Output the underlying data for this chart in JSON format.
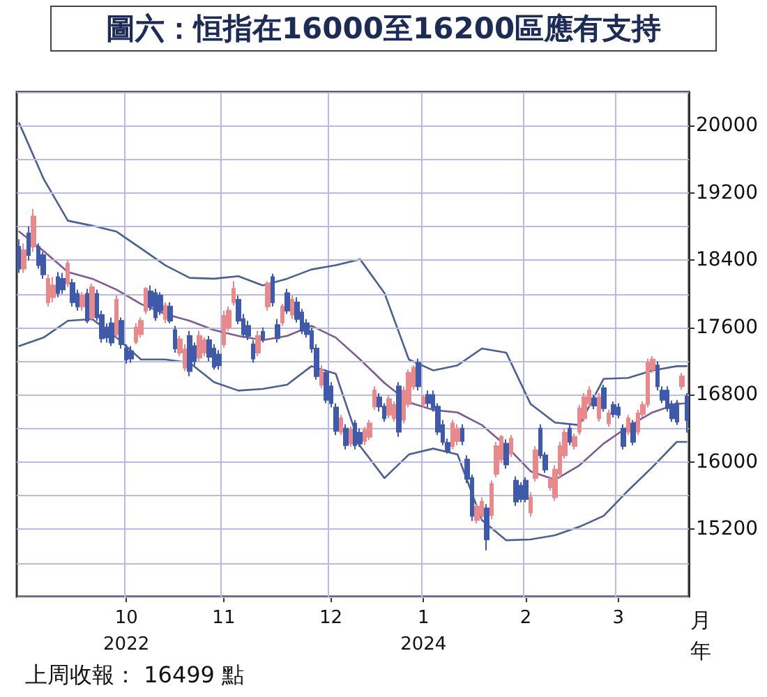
{
  "chart_data": {
    "type": "candlestick",
    "title": "圖六：恒指在16000至16200區應有支持",
    "xlabel": "月年",
    "annotations": [
      "上周收報： 16499 點"
    ],
    "categories": [
      null,
      null,
      null,
      null,
      null,
      null,
      null,
      null,
      null,
      null,
      null,
      null,
      null,
      null,
      null,
      null,
      null,
      null,
      null,
      null,
      null,
      null,
      "10\n2022",
      null,
      null,
      null,
      null,
      null,
      null,
      null,
      null,
      null,
      null,
      null,
      null,
      null,
      null,
      null,
      null,
      null,
      null,
      null,
      "11",
      null,
      null,
      null,
      null,
      null,
      null,
      null,
      null,
      null,
      null,
      null,
      null,
      null,
      null,
      null,
      null,
      null,
      null,
      null,
      null,
      null,
      "12",
      null,
      null,
      null,
      null,
      null,
      null,
      null,
      null,
      null,
      null,
      null,
      null,
      null,
      null,
      null,
      null,
      null,
      null,
      "1\n2024",
      null,
      null,
      null,
      null,
      null,
      null,
      null,
      null,
      null,
      null,
      null,
      null,
      null,
      null,
      null,
      null,
      null,
      null,
      null,
      null,
      "2",
      null,
      null,
      null,
      null,
      null,
      null,
      null,
      null,
      null,
      null,
      null,
      null,
      null,
      null,
      null,
      null,
      null,
      null,
      "3",
      null,
      null,
      null,
      null,
      null,
      null,
      null,
      null,
      null,
      null,
      null,
      null,
      null,
      null
    ],
    "ohlc": [
      [
        18560,
        18650,
        18250,
        18300
      ],
      [
        18300,
        18600,
        18250,
        18520
      ],
      [
        18720,
        18800,
        18400,
        18460
      ],
      [
        18560,
        19010,
        18500,
        18920
      ],
      [
        18560,
        18600,
        18300,
        18340
      ],
      [
        18460,
        18500,
        18180,
        18230
      ],
      [
        17900,
        18230,
        17850,
        18180
      ],
      [
        17960,
        18200,
        17900,
        18100
      ],
      [
        18200,
        18260,
        17960,
        18010
      ],
      [
        18180,
        18250,
        18000,
        18050
      ],
      [
        18120,
        18400,
        18080,
        18360
      ],
      [
        18130,
        18180,
        17850,
        17900
      ],
      [
        18000,
        18050,
        17800,
        17850
      ],
      [
        17850,
        18020,
        17800,
        17980
      ],
      [
        18000,
        18060,
        17650,
        17680
      ],
      [
        17720,
        18120,
        17680,
        18080
      ],
      [
        18000,
        18050,
        17680,
        17720
      ],
      [
        17750,
        17800,
        17420,
        17470
      ],
      [
        17600,
        17650,
        17420,
        17480
      ],
      [
        17650,
        17720,
        17380,
        17420
      ],
      [
        17520,
        17980,
        17480,
        17930
      ],
      [
        17680,
        17720,
        17350,
        17400
      ],
      [
        17350,
        17400,
        17170,
        17220
      ],
      [
        17320,
        17380,
        17180,
        17230
      ],
      [
        17430,
        17650,
        17400,
        17600
      ],
      [
        17520,
        17720,
        17480,
        17680
      ],
      [
        17800,
        18080,
        17760,
        18060
      ],
      [
        18030,
        18100,
        17800,
        17850
      ],
      [
        18010,
        18060,
        17680,
        17720
      ],
      [
        17980,
        18020,
        17750,
        17800
      ],
      [
        17700,
        17900,
        17650,
        17860
      ],
      [
        17850,
        17900,
        17650,
        17680
      ],
      [
        17570,
        17620,
        17300,
        17350
      ],
      [
        17300,
        17500,
        17260,
        17460
      ],
      [
        17120,
        17400,
        17080,
        17340
      ],
      [
        17500,
        17560,
        17020,
        17080
      ],
      [
        17380,
        17420,
        17150,
        17200
      ],
      [
        17240,
        17560,
        17200,
        17500
      ],
      [
        17300,
        17480,
        17260,
        17450
      ],
      [
        17450,
        17500,
        17200,
        17250
      ],
      [
        17350,
        17400,
        17100,
        17130
      ],
      [
        17280,
        17330,
        17100,
        17150
      ],
      [
        17400,
        17800,
        17360,
        17740
      ],
      [
        17600,
        17850,
        17560,
        17800
      ],
      [
        17900,
        18150,
        17860,
        18060
      ],
      [
        17930,
        17980,
        17640,
        17680
      ],
      [
        17700,
        17760,
        17480,
        17520
      ],
      [
        17620,
        17680,
        17450,
        17500
      ],
      [
        17400,
        17450,
        17180,
        17230
      ],
      [
        17300,
        17560,
        17260,
        17500
      ],
      [
        17550,
        17600,
        17420,
        17460
      ],
      [
        17850,
        18150,
        17800,
        18120
      ],
      [
        18200,
        18240,
        17850,
        17900
      ],
      [
        17630,
        17700,
        17420,
        17470
      ],
      [
        17660,
        17880,
        17620,
        17850
      ],
      [
        18010,
        18060,
        17760,
        17800
      ],
      [
        17750,
        17980,
        17700,
        17930
      ],
      [
        17900,
        17960,
        17660,
        17700
      ],
      [
        17780,
        17820,
        17520,
        17560
      ],
      [
        17650,
        17700,
        17480,
        17520
      ],
      [
        17560,
        17600,
        17300,
        17350
      ],
      [
        17350,
        17400,
        16980,
        17020
      ],
      [
        16920,
        17150,
        16880,
        17100
      ],
      [
        17060,
        17100,
        16700,
        16740
      ],
      [
        16900,
        16950,
        16650,
        16700
      ],
      [
        16650,
        16700,
        16320,
        16370
      ],
      [
        16360,
        16560,
        16320,
        16520
      ],
      [
        16400,
        16450,
        16150,
        16200
      ],
      [
        16220,
        16420,
        16180,
        16380
      ],
      [
        16460,
        16500,
        16150,
        16200
      ],
      [
        16350,
        16400,
        16180,
        16220
      ],
      [
        16250,
        16420,
        16200,
        16380
      ],
      [
        16300,
        16500,
        16260,
        16460
      ],
      [
        16660,
        16900,
        16620,
        16850
      ],
      [
        16770,
        16820,
        16600,
        16660
      ],
      [
        16660,
        16700,
        16480,
        16520
      ],
      [
        16560,
        16800,
        16520,
        16750
      ],
      [
        16520,
        16720,
        16480,
        16680
      ],
      [
        16900,
        16950,
        16300,
        16360
      ],
      [
        16500,
        16900,
        16460,
        16850
      ],
      [
        16690,
        17100,
        16650,
        17060
      ],
      [
        16900,
        17150,
        16860,
        17120
      ],
      [
        17180,
        17230,
        16850,
        16900
      ],
      [
        16690,
        16800,
        16650,
        16770
      ],
      [
        16800,
        16850,
        16650,
        16700
      ],
      [
        16800,
        16850,
        16600,
        16640
      ],
      [
        16660,
        16700,
        16320,
        16360
      ],
      [
        16440,
        16500,
        16200,
        16240
      ],
      [
        16230,
        16280,
        16100,
        16130
      ],
      [
        16190,
        16500,
        16150,
        16460
      ],
      [
        16250,
        16450,
        16200,
        16400
      ],
      [
        16400,
        16450,
        16200,
        16250
      ],
      [
        16030,
        16080,
        15750,
        15800
      ],
      [
        15810,
        15850,
        15300,
        15360
      ],
      [
        15310,
        15500,
        15270,
        15470
      ],
      [
        15360,
        15580,
        15320,
        15530
      ],
      [
        15450,
        15500,
        14950,
        15080
      ],
      [
        15370,
        15780,
        15320,
        15740
      ],
      [
        15860,
        16240,
        15820,
        16190
      ],
      [
        16030,
        16320,
        15990,
        16300
      ],
      [
        16220,
        16270,
        15920,
        15970
      ],
      [
        16100,
        16320,
        16060,
        16280
      ],
      [
        15780,
        15830,
        15480,
        15530
      ],
      [
        15720,
        15760,
        15520,
        15560
      ],
      [
        15780,
        15820,
        15520,
        15560
      ],
      [
        15400,
        15640,
        15350,
        15580
      ],
      [
        15810,
        16190,
        15770,
        16140
      ],
      [
        16400,
        16450,
        16040,
        16080
      ],
      [
        16080,
        16120,
        15870,
        15910
      ],
      [
        15700,
        15830,
        15660,
        15790
      ],
      [
        15580,
        15960,
        15540,
        15910
      ],
      [
        15860,
        16240,
        15820,
        16190
      ],
      [
        16080,
        16400,
        16040,
        16350
      ],
      [
        16400,
        16450,
        16200,
        16240
      ],
      [
        16190,
        16340,
        16150,
        16300
      ],
      [
        16360,
        16680,
        16320,
        16640
      ],
      [
        16520,
        16820,
        16480,
        16770
      ],
      [
        16700,
        16900,
        16660,
        16850
      ],
      [
        16760,
        16800,
        16630,
        16670
      ],
      [
        16520,
        16820,
        16480,
        16770
      ],
      [
        16880,
        16920,
        16600,
        16640
      ],
      [
        16460,
        16620,
        16420,
        16580
      ],
      [
        16680,
        16720,
        16530,
        16570
      ],
      [
        16650,
        16700,
        16520,
        16560
      ],
      [
        16400,
        16450,
        16150,
        16190
      ],
      [
        16360,
        16560,
        16320,
        16520
      ],
      [
        16460,
        16500,
        16200,
        16240
      ],
      [
        16360,
        16620,
        16320,
        16580
      ],
      [
        16570,
        16720,
        16530,
        16680
      ],
      [
        16690,
        17230,
        16650,
        17180
      ],
      [
        17100,
        17260,
        17060,
        17220
      ],
      [
        17150,
        17200,
        16850,
        16900
      ],
      [
        16850,
        16900,
        16700,
        16740
      ],
      [
        16850,
        16900,
        16600,
        16640
      ],
      [
        16690,
        16730,
        16480,
        16520
      ],
      [
        16700,
        16740,
        16440,
        16480
      ],
      [
        16900,
        17060,
        16860,
        17020
      ],
      [
        16780,
        16820,
        16350,
        16499
      ]
    ],
    "colors": [
      "#3f5aa8",
      "#e8898b",
      "#3f5aa8",
      "#e8898b",
      "#3f5aa8",
      "#3f5aa8",
      "#e8898b",
      "#e8898b",
      "#3f5aa8",
      "#3f5aa8",
      "#e8898b",
      "#3f5aa8",
      "#3f5aa8",
      "#e8898b",
      "#3f5aa8",
      "#e8898b",
      "#3f5aa8",
      "#3f5aa8",
      "#3f5aa8",
      "#3f5aa8",
      "#e8898b",
      "#3f5aa8",
      "#3f5aa8",
      "#3f5aa8",
      "#e8898b",
      "#e8898b",
      "#e8898b",
      "#3f5aa8",
      "#3f5aa8",
      "#3f5aa8",
      "#e8898b",
      "#3f5aa8",
      "#3f5aa8",
      "#e8898b",
      "#e8898b",
      "#3f5aa8",
      "#3f5aa8",
      "#e8898b",
      "#e8898b",
      "#3f5aa8",
      "#3f5aa8",
      "#3f5aa8",
      "#e8898b",
      "#e8898b",
      "#e8898b",
      "#3f5aa8",
      "#3f5aa8",
      "#3f5aa8",
      "#3f5aa8",
      "#e8898b",
      "#3f5aa8",
      "#e8898b",
      "#3f5aa8",
      "#3f5aa8",
      "#e8898b",
      "#3f5aa8",
      "#e8898b",
      "#3f5aa8",
      "#3f5aa8",
      "#3f5aa8",
      "#3f5aa8",
      "#3f5aa8",
      "#e8898b",
      "#3f5aa8",
      "#3f5aa8",
      "#3f5aa8",
      "#e8898b",
      "#3f5aa8",
      "#e8898b",
      "#3f5aa8",
      "#3f5aa8",
      "#e8898b",
      "#e8898b",
      "#e8898b",
      "#3f5aa8",
      "#3f5aa8",
      "#e8898b",
      "#e8898b",
      "#3f5aa8",
      "#e8898b",
      "#e8898b",
      "#e8898b",
      "#3f5aa8",
      "#e8898b",
      "#3f5aa8",
      "#3f5aa8",
      "#3f5aa8",
      "#3f5aa8",
      "#3f5aa8",
      "#e8898b",
      "#e8898b",
      "#3f5aa8",
      "#3f5aa8",
      "#3f5aa8",
      "#e8898b",
      "#e8898b",
      "#3f5aa8",
      "#e8898b",
      "#e8898b",
      "#e8898b",
      "#3f5aa8",
      "#e8898b",
      "#3f5aa8",
      "#3f5aa8",
      "#3f5aa8",
      "#e8898b",
      "#e8898b",
      "#3f5aa8",
      "#3f5aa8",
      "#e8898b",
      "#e8898b",
      "#e8898b",
      "#e8898b",
      "#3f5aa8",
      "#e8898b",
      "#e8898b",
      "#e8898b",
      "#e8898b",
      "#3f5aa8",
      "#e8898b",
      "#3f5aa8",
      "#e8898b",
      "#3f5aa8",
      "#3f5aa8",
      "#3f5aa8",
      "#e8898b",
      "#3f5aa8",
      "#e8898b",
      "#e8898b",
      "#e8898b",
      "#e8898b",
      "#3f5aa8",
      "#3f5aa8",
      "#3f5aa8",
      "#3f5aa8",
      "#3f5aa8",
      "#e8898b",
      "#3f5aa8"
    ],
    "series": [
      {
        "type": "line",
        "color": "#4a5f94",
        "values": [
          20030,
          null,
          null,
          null,
          null,
          19370,
          null,
          null,
          null,
          null,
          18870,
          null,
          null,
          null,
          null,
          18810,
          null,
          null,
          null,
          null,
          18740,
          null,
          null,
          null,
          null,
          18540,
          null,
          null,
          null,
          null,
          18340,
          null,
          null,
          null,
          null,
          18190,
          null,
          null,
          null,
          null,
          18180,
          null,
          null,
          null,
          null,
          18210,
          null,
          null,
          null,
          null,
          18100,
          null,
          null,
          null,
          null,
          18180,
          null,
          null,
          null,
          null,
          18290,
          null,
          null,
          null,
          null,
          18340,
          null,
          null,
          null,
          null,
          18410,
          null,
          null,
          null,
          null,
          18010,
          null,
          null,
          null,
          null,
          17220,
          null,
          null,
          null,
          null,
          17090,
          null,
          null,
          null,
          null,
          17150,
          null,
          null,
          null,
          null,
          17350,
          null,
          null,
          null,
          null,
          17300,
          null,
          null,
          null,
          null,
          16690,
          null,
          null,
          null,
          null,
          16470,
          null,
          null,
          null,
          null,
          16440,
          null,
          null,
          null,
          null,
          16990,
          null,
          null,
          null,
          null,
          17000,
          null,
          null,
          null,
          null,
          17090,
          null,
          null,
          null,
          null,
          17140,
          null,
          17140
        ]
      },
      {
        "type": "line",
        "color": "#7d5a96",
        "values": [
          18740,
          null,
          null,
          null,
          null,
          18510,
          null,
          null,
          null,
          null,
          18260,
          null,
          null,
          null,
          null,
          18180,
          null,
          null,
          null,
          null,
          18050,
          null,
          null,
          null,
          null,
          17880,
          null,
          null,
          null,
          null,
          17760,
          null,
          null,
          null,
          null,
          17680,
          null,
          null,
          null,
          null,
          17570,
          null,
          null,
          null,
          null,
          17500,
          null,
          null,
          null,
          null,
          17450,
          null,
          null,
          null,
          null,
          17500,
          null,
          null,
          null,
          null,
          17620,
          null,
          null,
          null,
          null,
          17480,
          null,
          null,
          null,
          null,
          17220,
          null,
          null,
          null,
          null,
          16940,
          null,
          null,
          null,
          null,
          16710,
          null,
          null,
          null,
          null,
          16620,
          null,
          null,
          null,
          null,
          16590,
          null,
          null,
          null,
          null,
          16440,
          null,
          null,
          null,
          null,
          16190,
          null,
          null,
          null,
          null,
          15890,
          null,
          null,
          null,
          null,
          15790,
          null,
          null,
          null,
          null,
          15960,
          null,
          null,
          null,
          null,
          16220,
          null,
          null,
          null,
          null,
          16420,
          null,
          null,
          null,
          null,
          16590,
          null,
          null,
          null,
          null,
          16690,
          null,
          16700
        ]
      },
      {
        "type": "line",
        "color": "#4a5f94",
        "values": [
          17380,
          null,
          null,
          null,
          null,
          17480,
          null,
          null,
          null,
          null,
          17680,
          null,
          null,
          null,
          null,
          17700,
          null,
          null,
          null,
          null,
          17480,
          null,
          null,
          null,
          null,
          17220,
          null,
          null,
          null,
          null,
          17220,
          null,
          null,
          null,
          null,
          17180,
          null,
          null,
          null,
          null,
          16950,
          null,
          null,
          null,
          null,
          16850,
          null,
          null,
          null,
          null,
          16870,
          null,
          null,
          null,
          null,
          16920,
          null,
          null,
          null,
          null,
          17140,
          null,
          null,
          null,
          null,
          17050,
          null,
          null,
          null,
          null,
          16190,
          null,
          null,
          null,
          null,
          15810,
          null,
          null,
          null,
          null,
          16090,
          null,
          null,
          null,
          null,
          16160,
          null,
          null,
          null,
          null,
          16090,
          null,
          null,
          null,
          null,
          15310,
          null,
          null,
          null,
          null,
          15070,
          null,
          null,
          null,
          null,
          15080,
          null,
          null,
          null,
          null,
          15130,
          null,
          null,
          null,
          null,
          15230,
          null,
          null,
          null,
          null,
          15360,
          null,
          null,
          null,
          null,
          15660,
          null,
          null,
          null,
          null,
          15940,
          null,
          null,
          null,
          null,
          16240,
          null,
          16240
        ]
      }
    ],
    "ylim": [
      14400,
      20400
    ],
    "yticks": [
      {
        "value": 14400,
        "label": null
      },
      {
        "value": 14800,
        "label": null
      },
      15200,
      {
        "value": 15600,
        "label": null
      },
      16000,
      {
        "value": 16400,
        "label": null
      },
      16800,
      {
        "value": 17200,
        "label": null
      },
      17600,
      {
        "value": 18000,
        "label": null
      },
      18400,
      {
        "value": 18800,
        "label": null
      },
      19200,
      {
        "value": 19600,
        "label": null
      },
      20000,
      {
        "value": 20400,
        "label": null
      }
    ],
    "grid": true,
    "marker": "none"
  }
}
